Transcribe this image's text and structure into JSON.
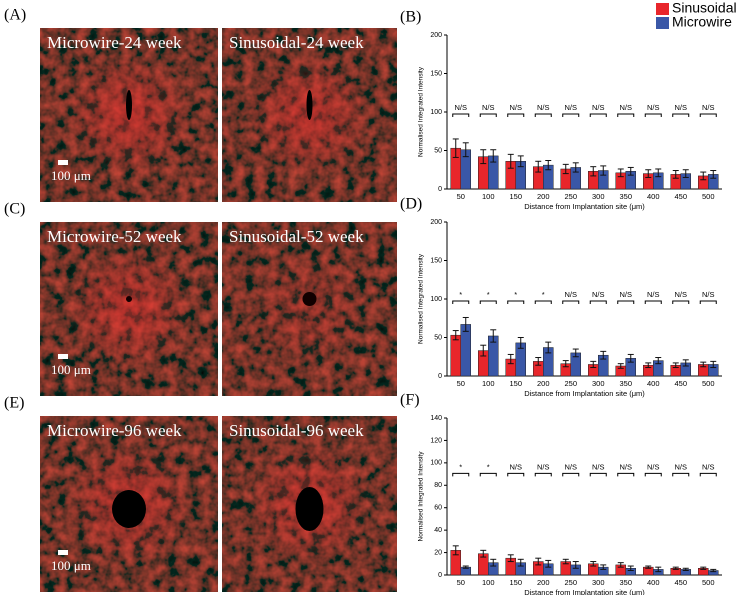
{
  "images": [
    {
      "label": "(A)",
      "left": "Microwire-24 week",
      "right": "Sinusoidal-24 week",
      "scale": "100 μm"
    },
    {
      "label": "(C)",
      "left": "Microwire-52 week",
      "right": "Sinusoidal-52 week",
      "scale": "100 μm"
    },
    {
      "label": "(E)",
      "left": "Microwire-96 week",
      "right": "Sinusoidal-96 week",
      "scale": "100 μm"
    }
  ],
  "chart_data": [
    {
      "type": "bar",
      "label": "(B)",
      "ylabel": "Normalised Integrated Intensity",
      "xlabel": "Distance from Implantation site (μm)",
      "categories": [
        "50",
        "100",
        "150",
        "200",
        "250",
        "300",
        "350",
        "400",
        "450",
        "500"
      ],
      "series": [
        {
          "name": "Sinusoidal",
          "color": "#e8262b",
          "values": [
            53,
            42,
            36,
            29,
            26,
            23,
            21,
            20,
            19,
            17
          ],
          "errors": [
            12,
            9,
            9,
            7,
            6,
            6,
            5,
            5,
            5,
            5
          ]
        },
        {
          "name": "Microwire",
          "color": "#3a57a7",
          "values": [
            51,
            43,
            36,
            31,
            28,
            24,
            23,
            21,
            20,
            19
          ],
          "errors": [
            9,
            8,
            7,
            6,
            6,
            6,
            5,
            5,
            5,
            5
          ]
        }
      ],
      "annotations": [
        "N/S",
        "N/S",
        "N/S",
        "N/S",
        "N/S",
        "N/S",
        "N/S",
        "N/S",
        "N/S",
        "N/S"
      ],
      "ylim": [
        0,
        200
      ],
      "yticks": [
        0,
        50,
        100,
        150,
        200
      ]
    },
    {
      "type": "bar",
      "label": "(D)",
      "ylabel": "Normalised Integrated Intensity",
      "xlabel": "Distance from Implantation site (μm)",
      "categories": [
        "50",
        "100",
        "150",
        "200",
        "250",
        "300",
        "350",
        "400",
        "450",
        "500"
      ],
      "series": [
        {
          "color": "#e8262b",
          "values": [
            53,
            33,
            22,
            19,
            16,
            15,
            13,
            14,
            14,
            15
          ],
          "errors": [
            6,
            7,
            6,
            5,
            4,
            4,
            3,
            3,
            3,
            3
          ]
        },
        {
          "color": "#3a57a7",
          "values": [
            67,
            52,
            43,
            37,
            30,
            27,
            23,
            20,
            17,
            15
          ],
          "errors": [
            9,
            8,
            7,
            7,
            5,
            5,
            5,
            4,
            4,
            4
          ]
        }
      ],
      "annotations": [
        "*",
        "*",
        "*",
        "*",
        "N/S",
        "N/S",
        "N/S",
        "N/S",
        "N/S",
        "N/S"
      ],
      "ylim": [
        0,
        200
      ],
      "yticks": [
        0,
        50,
        100,
        150,
        200
      ]
    },
    {
      "type": "bar",
      "label": "(F)",
      "ylabel": "Normalised Integrated Intensity",
      "xlabel": "Distance from Implantation site (μm)",
      "categories": [
        "50",
        "100",
        "150",
        "200",
        "250",
        "300",
        "350",
        "400",
        "450",
        "500"
      ],
      "series": [
        {
          "color": "#e8262b",
          "values": [
            22,
            19,
            15,
            12,
            12,
            10,
            9,
            7,
            6,
            6
          ],
          "errors": [
            4,
            3,
            3,
            3,
            2,
            2,
            2,
            1,
            1,
            1
          ]
        },
        {
          "color": "#3a57a7",
          "values": [
            7,
            11,
            11,
            10,
            9,
            7,
            6,
            5,
            5,
            4
          ],
          "errors": [
            1,
            3,
            3,
            3,
            3,
            2,
            2,
            2,
            1,
            1
          ]
        }
      ],
      "annotations": [
        "*",
        "*",
        "N/S",
        "N/S",
        "N/S",
        "N/S",
        "N/S",
        "N/S",
        "N/S",
        "N/S"
      ],
      "ylim": [
        0,
        140
      ],
      "yticks": [
        0,
        20,
        40,
        60,
        80,
        100,
        120,
        140
      ]
    }
  ]
}
